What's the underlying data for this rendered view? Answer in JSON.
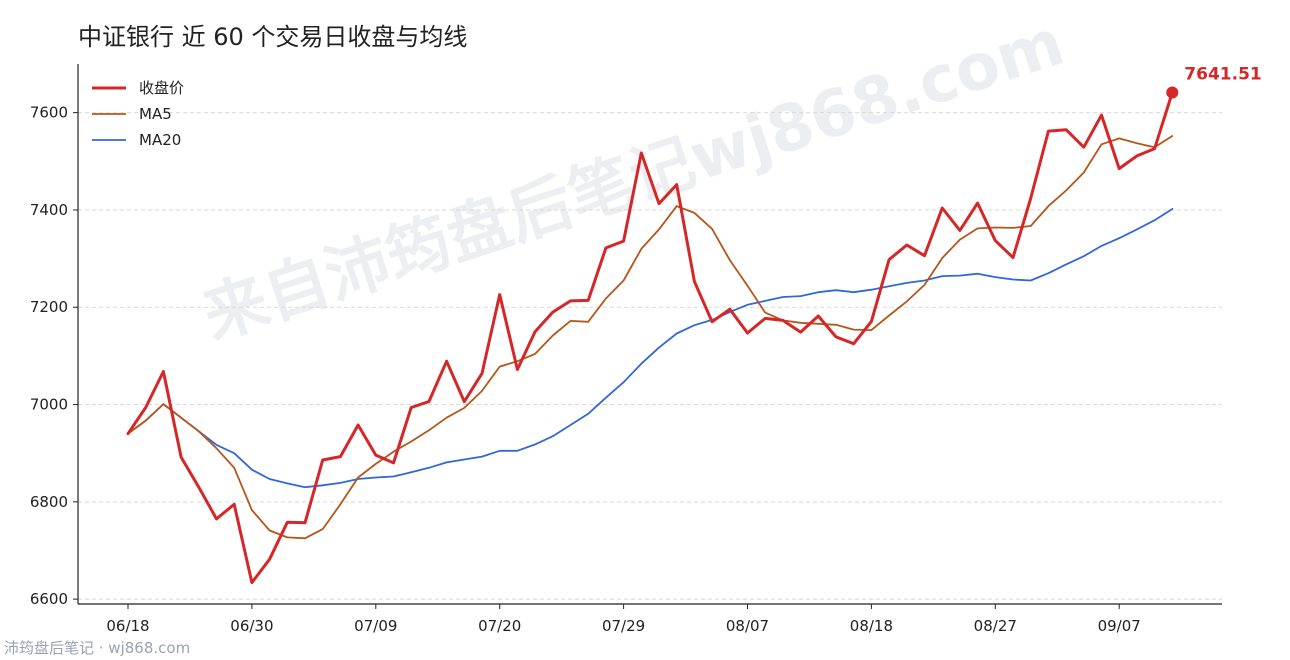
{
  "chart_data": {
    "type": "line",
    "title": "中证银行 近 60 个交易日收盘与均线",
    "xlabel": "",
    "ylabel": "",
    "ylim": [
      6590,
      7700
    ],
    "yticks": [
      6600,
      6800,
      7000,
      7200,
      7400,
      7600
    ],
    "xtick_labels": [
      "06/18",
      "06/30",
      "07/09",
      "07/20",
      "07/29",
      "08/07",
      "08/18",
      "08/27",
      "09/07"
    ],
    "xtick_indices": [
      0,
      7,
      14,
      21,
      28,
      35,
      42,
      49,
      56
    ],
    "grid": "horizontal-dashed",
    "legend_position": "top-left",
    "series": [
      {
        "name": "收盘价",
        "color": "#d62728",
        "values": [
          6940,
          6994,
          7068,
          6892,
          6830,
          6765,
          6795,
          6634,
          6682,
          6758,
          6757,
          6886,
          6893,
          6958,
          6896,
          6880,
          6994,
          7006,
          7089,
          7006,
          7064,
          7226,
          7072,
          7150,
          7190,
          7213,
          7214,
          7322,
          7336,
          7517,
          7413,
          7452,
          7253,
          7170,
          7196,
          7147,
          7177,
          7173,
          7149,
          7182,
          7139,
          7125,
          7171,
          7298,
          7328,
          7306,
          7404,
          7358,
          7414,
          7337,
          7302,
          7424,
          7562,
          7565,
          7529,
          7595,
          7485,
          7511,
          7526,
          7641.51
        ]
      },
      {
        "name": "MA5",
        "color": "#b5561a",
        "values": [
          6940,
          6967,
          7001,
          6973,
          6945,
          6910,
          6870,
          6783,
          6741,
          6727,
          6725,
          6744,
          6795,
          6850,
          6878,
          6903,
          6924,
          6947,
          6973,
          6993,
          7028,
          7078,
          7089,
          7104,
          7142,
          7172,
          7170,
          7218,
          7255,
          7320,
          7360,
          7408,
          7394,
          7361,
          7297,
          7244,
          7189,
          7173,
          7168,
          7166,
          7164,
          7154,
          7153,
          7183,
          7212,
          7246,
          7301,
          7339,
          7362,
          7364,
          7363,
          7367,
          7408,
          7440,
          7477,
          7535,
          7547,
          7537,
          7529,
          7552
        ]
      },
      {
        "name": "MA20",
        "color": "#3367d6",
        "values": [
          6940,
          6967,
          7001,
          6973,
          6945,
          6917,
          6900,
          6866,
          6847,
          6838,
          6830,
          6834,
          6839,
          6847,
          6850,
          6852,
          6861,
          6870,
          6881,
          6887,
          6893,
          6905,
          6905,
          6918,
          6935,
          6958,
          6981,
          7014,
          7046,
          7084,
          7117,
          7146,
          7163,
          7174,
          7190,
          7205,
          7213,
          7221,
          7223,
          7231,
          7235,
          7231,
          7236,
          7243,
          7250,
          7255,
          7264,
          7265,
          7269,
          7262,
          7257,
          7255,
          7270,
          7288,
          7305,
          7326,
          7342,
          7360,
          7379,
          7402
        ]
      }
    ],
    "last_value_label": "7641.51"
  },
  "watermark": "来自沛筠盘后笔记wj868.com",
  "footer": "沛筠盘后笔记 · wj868.com"
}
